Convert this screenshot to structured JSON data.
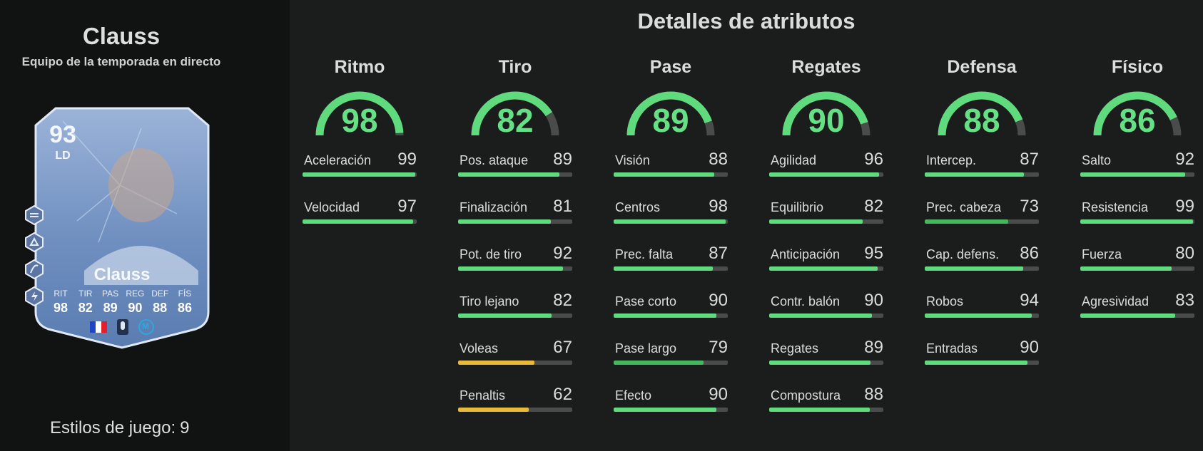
{
  "player": {
    "name": "Clauss",
    "subtitle": "Equipo de la temporada en directo",
    "playstyles_label": "Estilos de juego:",
    "playstyles_count": "9"
  },
  "card": {
    "rating": "93",
    "position": "LD",
    "name": "Clauss",
    "labels": [
      "RIT",
      "TIR",
      "PAS",
      "REG",
      "DEF",
      "FÍS"
    ],
    "values": [
      "98",
      "82",
      "89",
      "90",
      "88",
      "86"
    ],
    "accent": "#8fa8cf"
  },
  "details_title": "Detalles de atributos",
  "colors": {
    "high": "#5fdb7d",
    "mid": "#45b85e",
    "low": "#e9b93a",
    "track": "#4a4b4b"
  },
  "categories": [
    {
      "title": "Ritmo",
      "value": "98",
      "stats": [
        {
          "label": "Aceleración",
          "value": "99"
        },
        {
          "label": "Velocidad",
          "value": "97"
        }
      ]
    },
    {
      "title": "Tiro",
      "value": "82",
      "stats": [
        {
          "label": "Pos. ataque",
          "value": "89"
        },
        {
          "label": "Finalización",
          "value": "81"
        },
        {
          "label": "Pot. de tiro",
          "value": "92"
        },
        {
          "label": "Tiro lejano",
          "value": "82"
        },
        {
          "label": "Voleas",
          "value": "67"
        },
        {
          "label": "Penaltis",
          "value": "62"
        }
      ]
    },
    {
      "title": "Pase",
      "value": "89",
      "stats": [
        {
          "label": "Visión",
          "value": "88"
        },
        {
          "label": "Centros",
          "value": "98"
        },
        {
          "label": "Prec. falta",
          "value": "87"
        },
        {
          "label": "Pase corto",
          "value": "90"
        },
        {
          "label": "Pase largo",
          "value": "79"
        },
        {
          "label": "Efecto",
          "value": "90"
        }
      ]
    },
    {
      "title": "Regates",
      "value": "90",
      "stats": [
        {
          "label": "Agilidad",
          "value": "96"
        },
        {
          "label": "Equilibrio",
          "value": "82"
        },
        {
          "label": "Anticipación",
          "value": "95"
        },
        {
          "label": "Contr. balón",
          "value": "90"
        },
        {
          "label": "Regates",
          "value": "89"
        },
        {
          "label": "Compostura",
          "value": "88"
        }
      ]
    },
    {
      "title": "Defensa",
      "value": "88",
      "stats": [
        {
          "label": "Intercep.",
          "value": "87"
        },
        {
          "label": "Prec. cabeza",
          "value": "73"
        },
        {
          "label": "Cap. defens.",
          "value": "86"
        },
        {
          "label": "Robos",
          "value": "94"
        },
        {
          "label": "Entradas",
          "value": "90"
        }
      ]
    },
    {
      "title": "Físico",
      "value": "86",
      "stats": [
        {
          "label": "Salto",
          "value": "92"
        },
        {
          "label": "Resistencia",
          "value": "99"
        },
        {
          "label": "Fuerza",
          "value": "80"
        },
        {
          "label": "Agresividad",
          "value": "83"
        }
      ]
    }
  ]
}
